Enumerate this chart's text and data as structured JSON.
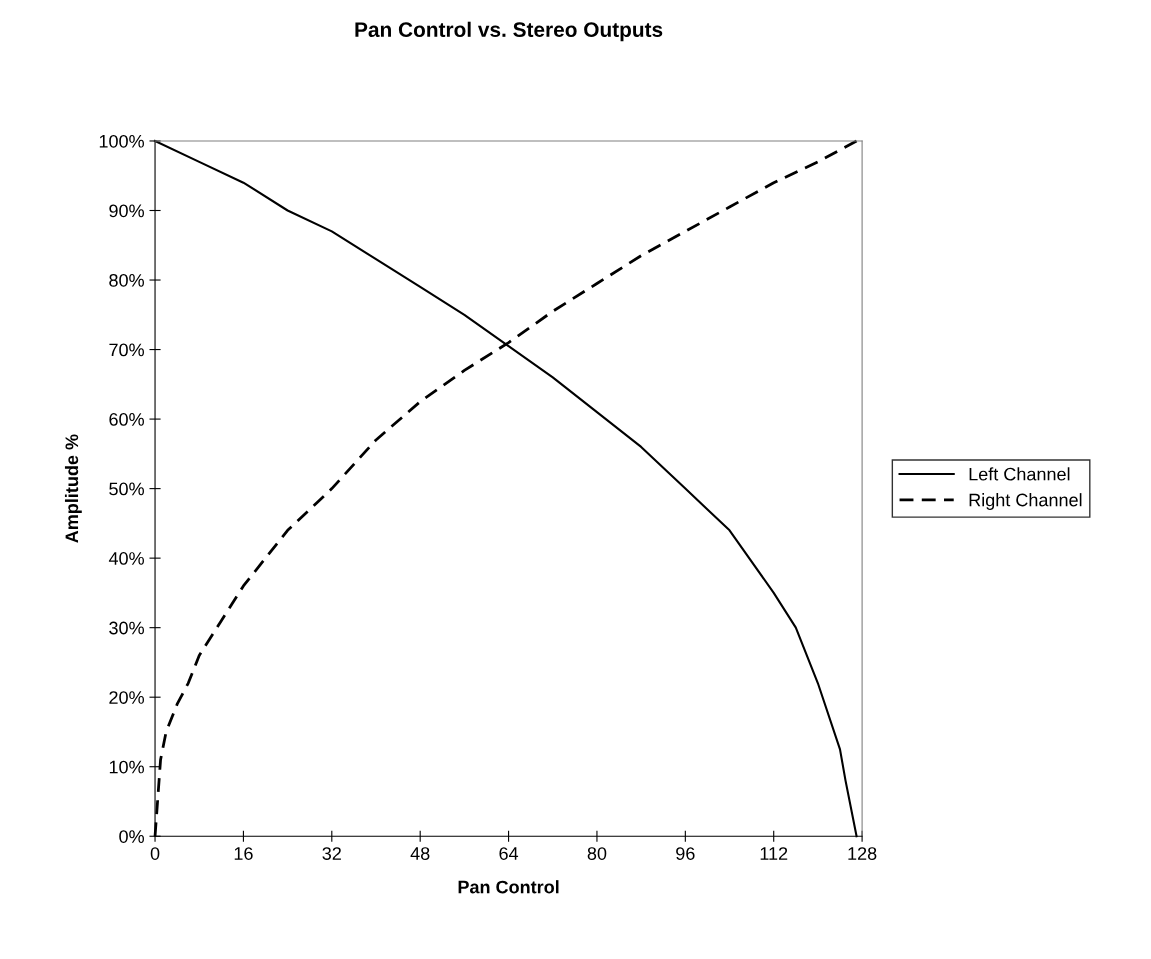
{
  "chart_data": {
    "type": "line",
    "title": "Pan Control vs. Stereo Outputs",
    "xlabel": "Pan Control",
    "ylabel": "Amplitude %",
    "xlim": [
      0,
      128
    ],
    "xticks": [
      0,
      16,
      32,
      48,
      64,
      80,
      96,
      112,
      128
    ],
    "ylim": [
      0,
      100
    ],
    "yticks": [
      {
        "value": 0,
        "label": "0%"
      },
      {
        "value": 10,
        "label": "10%"
      },
      {
        "value": 20,
        "label": "20%"
      },
      {
        "value": 30,
        "label": "30%"
      },
      {
        "value": 40,
        "label": "40%"
      },
      {
        "value": 50,
        "label": "50%"
      },
      {
        "value": 60,
        "label": "60%"
      },
      {
        "value": 70,
        "label": "70%"
      },
      {
        "value": 80,
        "label": "80%"
      },
      {
        "value": 90,
        "label": "90%"
      },
      {
        "value": 100,
        "label": "100%"
      }
    ],
    "grid": false,
    "legend": "right",
    "marker": "none",
    "series": [
      {
        "name": "Left Channel",
        "color": "#000000",
        "line_style": "solid",
        "x": [
          0,
          8,
          16,
          24,
          32,
          40,
          48,
          56,
          64,
          72,
          80,
          88,
          96,
          104,
          112,
          116,
          120,
          124,
          125,
          127
        ],
        "values": [
          100,
          97,
          94,
          90,
          87,
          83,
          79,
          75,
          70.5,
          66,
          61,
          56,
          50,
          44,
          35,
          30,
          22,
          12.5,
          8,
          0
        ]
      },
      {
        "name": "Right Channel",
        "color": "#000000",
        "line_style": "dashed",
        "x": [
          0,
          1,
          2,
          4,
          6,
          8,
          12,
          16,
          24,
          32,
          40,
          48,
          56,
          64,
          72,
          80,
          88,
          96,
          104,
          112,
          120,
          127
        ],
        "values": [
          0,
          11,
          15,
          19,
          22,
          26,
          31,
          36,
          44,
          50,
          57,
          62.5,
          67,
          71,
          75.5,
          79.5,
          83.5,
          87,
          90.5,
          94,
          97,
          100
        ]
      }
    ]
  }
}
